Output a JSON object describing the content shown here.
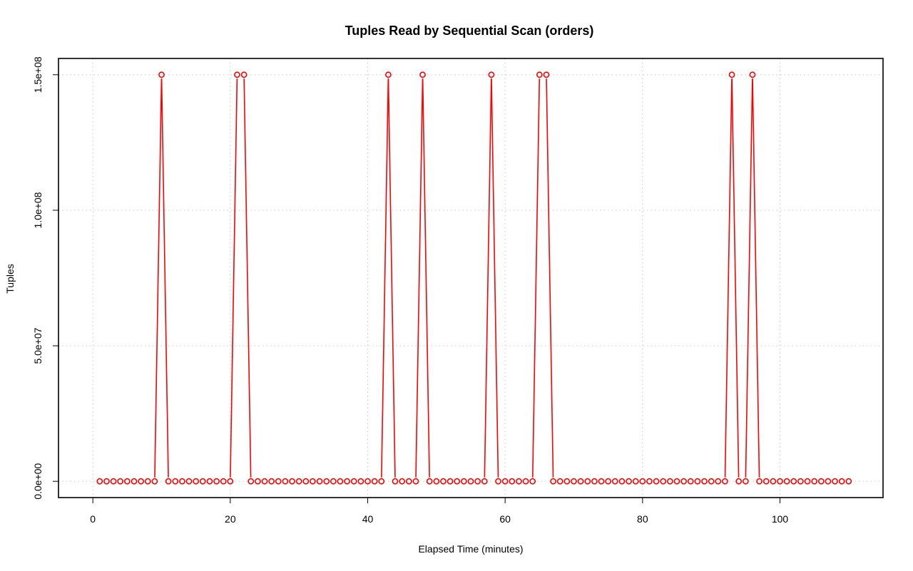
{
  "chart_data": {
    "type": "line",
    "title": "Tuples Read by Sequential Scan (orders)",
    "xlabel": "Elapsed Time (minutes)",
    "ylabel": "Tuples",
    "xlim": [
      -5,
      115
    ],
    "ylim": [
      -6000000,
      156000000
    ],
    "x_ticks": [
      0,
      20,
      40,
      60,
      80,
      100
    ],
    "x_tick_labels": [
      "0",
      "20",
      "40",
      "60",
      "80",
      "100"
    ],
    "y_ticks": [
      0,
      50000000,
      100000000,
      150000000
    ],
    "y_tick_labels": [
      "0.0e+00",
      "5.0e+07",
      "1.0e+08",
      "1.5e+08"
    ],
    "grid": true,
    "series_color": "#ff0000",
    "x_start": 1,
    "x_end": 110,
    "baseline_value": 0,
    "peak_value": 150000000,
    "peaks_x": [
      10,
      21,
      22,
      43,
      48,
      58,
      65,
      66,
      93,
      96
    ]
  }
}
